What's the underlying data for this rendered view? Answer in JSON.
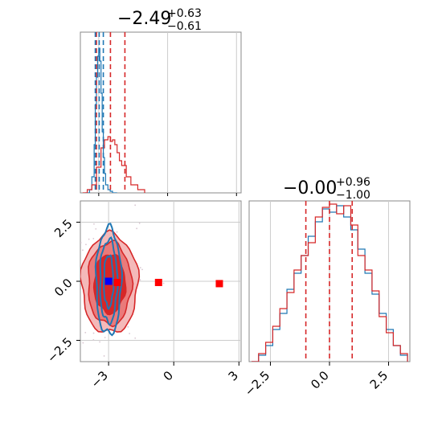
{
  "colors": {
    "red": "#d62728",
    "red_fill_light": "#f4b9b9",
    "red_fill_mid": "#ea7a7a",
    "red_fill_dark": "#d62728",
    "blue": "#1f77b4",
    "marker_blue": "#0000ff",
    "marker_red": "#ff0000",
    "grid": "#cccccc",
    "frame": "#888888",
    "scatter": "#d9c7d2"
  },
  "chart_data": [
    {
      "type": "line",
      "panel": "marginal-x",
      "title_main": "−2.49",
      "title_sup": "+0.63",
      "title_sub": "−0.61",
      "xlim": [
        -3.8,
        3.2
      ],
      "ylim": [
        0,
        1.0
      ],
      "grid": true,
      "vlines": [
        {
          "x": -3.1,
          "series": "red"
        },
        {
          "x": -2.49,
          "series": "red"
        },
        {
          "x": -1.86,
          "series": "red"
        },
        {
          "x": -3.15,
          "series": "blue"
        },
        {
          "x": -2.98,
          "series": "blue"
        },
        {
          "x": -2.8,
          "series": "blue"
        }
      ],
      "series": [
        {
          "color_key": "blue",
          "x": [
            -3.6,
            -3.4,
            -3.3,
            -3.2,
            -3.15,
            -3.1,
            -3.05,
            -3.0,
            -2.95,
            -2.9,
            -2.85,
            -2.8,
            -2.75,
            -2.7,
            -2.6,
            -2.5,
            -2.4,
            -2.2
          ],
          "values": [
            0.0,
            0.02,
            0.1,
            0.3,
            0.55,
            0.72,
            0.85,
            0.9,
            0.82,
            0.62,
            0.38,
            0.22,
            0.12,
            0.05,
            0.02,
            0.01,
            0.0,
            0.0
          ]
        },
        {
          "color_key": "red",
          "x": [
            -3.7,
            -3.5,
            -3.3,
            -3.1,
            -2.9,
            -2.75,
            -2.6,
            -2.5,
            -2.4,
            -2.3,
            -2.2,
            -2.1,
            -2.0,
            -1.8,
            -1.6,
            -1.3,
            -1.0
          ],
          "values": [
            0.0,
            0.02,
            0.05,
            0.16,
            0.28,
            0.33,
            0.35,
            0.32,
            0.33,
            0.3,
            0.25,
            0.2,
            0.17,
            0.1,
            0.05,
            0.02,
            0.0
          ]
        }
      ]
    },
    {
      "type": "line",
      "panel": "marginal-y",
      "title_main": "−0.00",
      "title_sup": "+0.96",
      "title_sub": "−1.00",
      "xlim": [
        -3.4,
        3.4
      ],
      "ylim": [
        0,
        1.0
      ],
      "x_ticks": [
        -2.5,
        0.0,
        2.5
      ],
      "x_tick_labels": [
        "−2.5",
        "0.0",
        "2.5"
      ],
      "grid": true,
      "vlines": [
        {
          "x": -1.0,
          "series": "red"
        },
        {
          "x": 0.0,
          "series": "red"
        },
        {
          "x": 0.96,
          "series": "red"
        }
      ],
      "series": [
        {
          "color_key": "blue",
          "x": [
            -3.3,
            -3.0,
            -2.7,
            -2.4,
            -2.1,
            -1.8,
            -1.5,
            -1.2,
            -0.9,
            -0.6,
            -0.3,
            0.0,
            0.3,
            0.6,
            0.9,
            1.2,
            1.5,
            1.8,
            2.1,
            2.4,
            2.7,
            3.0,
            3.3
          ],
          "values": [
            0.0,
            0.04,
            0.1,
            0.2,
            0.3,
            0.45,
            0.55,
            0.66,
            0.78,
            0.87,
            0.95,
            0.93,
            0.97,
            0.9,
            0.82,
            0.7,
            0.55,
            0.42,
            0.3,
            0.2,
            0.1,
            0.04,
            0.0
          ]
        },
        {
          "color_key": "red",
          "x": [
            -3.3,
            -3.0,
            -2.7,
            -2.4,
            -2.1,
            -1.8,
            -1.5,
            -1.2,
            -0.9,
            -0.6,
            -0.3,
            0.0,
            0.3,
            0.6,
            0.9,
            1.2,
            1.5,
            1.8,
            2.1,
            2.4,
            2.7,
            3.0,
            3.3
          ],
          "values": [
            0.0,
            0.05,
            0.12,
            0.22,
            0.33,
            0.43,
            0.57,
            0.66,
            0.74,
            0.9,
            0.96,
            0.98,
            0.92,
            0.97,
            0.85,
            0.66,
            0.57,
            0.44,
            0.28,
            0.18,
            0.1,
            0.05,
            0.0
          ]
        }
      ]
    },
    {
      "type": "scatter",
      "panel": "joint",
      "xlim": [
        -4.3,
        3.1
      ],
      "ylim": [
        -3.4,
        3.4
      ],
      "x_ticks": [
        -3,
        0,
        3
      ],
      "x_tick_labels": [
        "−3",
        "0",
        "3"
      ],
      "y_ticks": [
        -2.5,
        0.0,
        2.5
      ],
      "y_tick_labels": [
        "−2.5",
        "0.0",
        "2.5"
      ],
      "grid": true,
      "red_density": {
        "center": [
          -2.95,
          -0.1
        ],
        "levels": [
          {
            "sx": 1.3,
            "sy": 2.1,
            "fill_key": "red_fill_light"
          },
          {
            "sx": 1.0,
            "sy": 1.75,
            "fill_key": "red_fill_mid"
          },
          {
            "sx": 0.72,
            "sy": 1.25,
            "fill_key": "red_fill_dark"
          }
        ]
      },
      "blue_contours": {
        "center": [
          -3.0,
          0.0
        ],
        "levels": [
          {
            "sx": 0.58,
            "sy": 2.25
          },
          {
            "sx": 0.4,
            "sy": 1.75
          },
          {
            "sx": 0.22,
            "sy": 1.1
          }
        ]
      },
      "markers": [
        {
          "x": -3.0,
          "y": 0.0,
          "color_key": "marker_blue"
        },
        {
          "x": -2.6,
          "y": -0.05,
          "color_key": "marker_red"
        },
        {
          "x": -0.7,
          "y": -0.05,
          "color_key": "marker_red"
        },
        {
          "x": 2.1,
          "y": -0.1,
          "color_key": "marker_red"
        }
      ]
    }
  ]
}
